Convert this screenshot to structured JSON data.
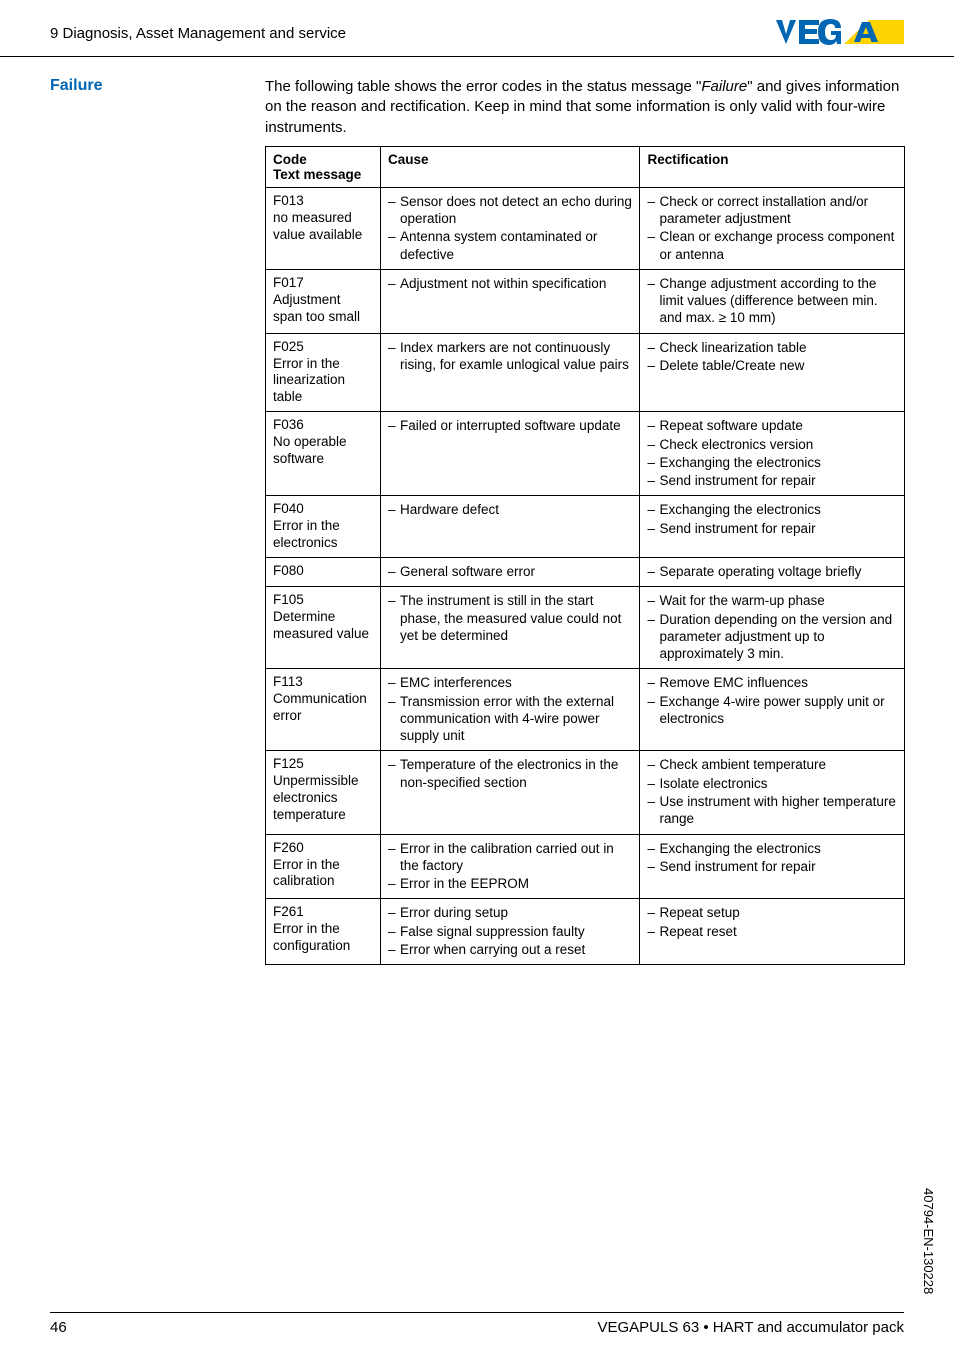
{
  "header": {
    "left": "9 Diagnosis, Asset Management and service"
  },
  "section": {
    "label": "Failure",
    "intro": "The following table shows the error codes in the status message \"Failure\" and gives information on the reason and rectification. Keep in mind that some information is only valid with four-wire instruments."
  },
  "table": {
    "columns": [
      "Code",
      "Cause",
      "Rectification"
    ],
    "code_subhead": "Text message",
    "rows": [
      {
        "code": "F013",
        "sub": "no measured value available",
        "cause": [
          "Sensor does not detect an echo during operation",
          "Antenna system contaminated or defective"
        ],
        "rect": [
          "Check or correct installation and/or parameter adjustment",
          "Clean or exchange process component or antenna"
        ]
      },
      {
        "code": "F017",
        "sub": "Adjustment span too small",
        "cause": [
          "Adjustment not within specification"
        ],
        "rect": [
          "Change adjustment according to the limit values (difference between min. and max. ≥ 10 mm)"
        ]
      },
      {
        "code": "F025",
        "sub": "Error in the linearization table",
        "cause": [
          "Index markers are not continuously rising, for examle unlogical value pairs"
        ],
        "rect": [
          "Check linearization table",
          "Delete table/Create new"
        ]
      },
      {
        "code": "F036",
        "sub": "No operable software",
        "cause": [
          "Failed or interrupted software update"
        ],
        "rect": [
          "Repeat software update",
          "Check electronics version",
          "Exchanging the electronics",
          "Send instrument for repair"
        ]
      },
      {
        "code": "F040",
        "sub": "Error in the electronics",
        "cause": [
          "Hardware defect"
        ],
        "rect": [
          "Exchanging the electronics",
          "Send instrument for repair"
        ]
      },
      {
        "code": "F080",
        "sub": "",
        "cause": [
          "General software error"
        ],
        "rect": [
          "Separate operating voltage briefly"
        ]
      },
      {
        "code": "F105",
        "sub": "Determine measured value",
        "cause": [
          "The instrument is still in the start phase, the measured value could not yet be determined"
        ],
        "rect": [
          "Wait for the warm-up phase",
          "Duration depending on the version and parameter adjustment up to approximately 3 min."
        ]
      },
      {
        "code": "F113",
        "sub": "Communication error",
        "cause": [
          "EMC interferences",
          "Transmission error with the external communication with 4-wire power supply unit"
        ],
        "rect": [
          "Remove EMC influences",
          "Exchange 4-wire power supply unit or electronics"
        ]
      },
      {
        "code": "F125",
        "sub": "Unpermissible electronics temperature",
        "cause": [
          "Temperature of the electronics in the non-specified section"
        ],
        "rect": [
          "Check ambient temperature",
          "Isolate electronics",
          "Use instrument with higher temperature range"
        ]
      },
      {
        "code": "F260",
        "sub": "Error in the calibration",
        "cause": [
          "Error in the calibration carried out in the factory",
          "Error in the EEPROM"
        ],
        "rect": [
          "Exchanging the electronics",
          "Send instrument for repair"
        ]
      },
      {
        "code": "F261",
        "sub": "Error in the configuration",
        "cause": [
          "Error during setup",
          "False signal suppression faulty",
          "Error when carrying out a reset"
        ],
        "rect": [
          "Repeat setup",
          "Repeat reset"
        ]
      }
    ]
  },
  "footer": {
    "page": "46",
    "doc": "VEGAPULS 63 • HART and accumulator pack"
  },
  "side": "40794-EN-130228",
  "colors": {
    "brand_blue": "#0066b3",
    "brand_yellow": "#ffd400"
  }
}
